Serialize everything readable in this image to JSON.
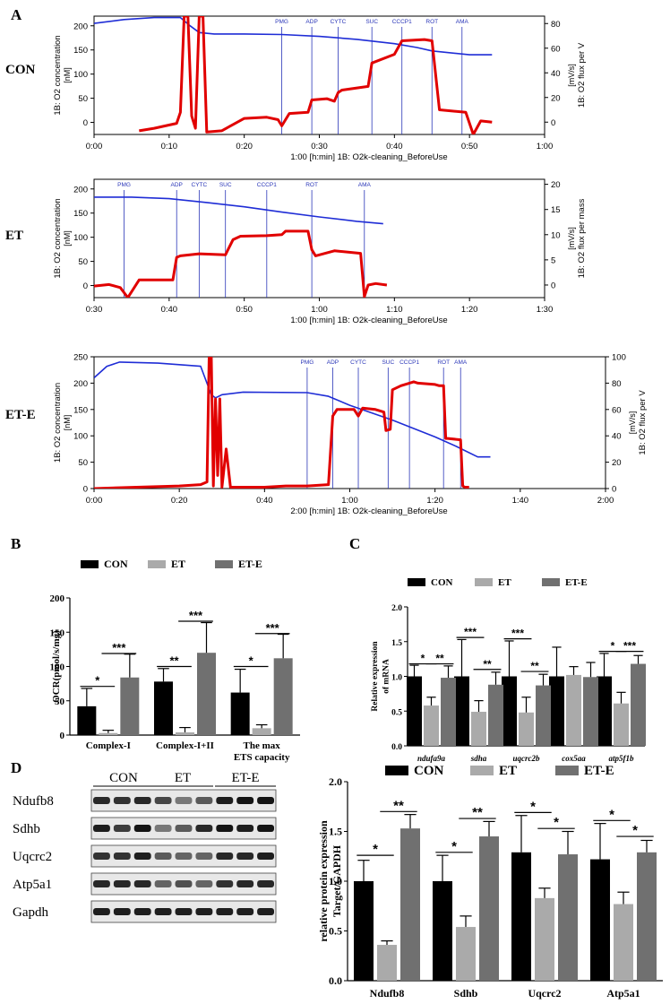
{
  "figure": {
    "panel_labels": [
      "A",
      "B",
      "C",
      "D"
    ],
    "row_labels": [
      "CON",
      "ET",
      "ET-E"
    ],
    "colors": {
      "o2_conc": "#1f2dd6",
      "o2_flux": "#e10000",
      "event": "#2a36b8",
      "con": "#000000",
      "et": "#aaaaaa",
      "ete": "#707070"
    }
  },
  "chart_data": [
    {
      "id": "A-CON",
      "type": "line",
      "title": "",
      "xlabel": "1:00 [h:min] 1B: O2k-cleaning_BeforeUse",
      "ylabel_left_1": "1B: O2 concentration",
      "ylabel_left_2": "[nM]",
      "ylabel_right_1": "1B: O2 flux per V",
      "ylabel_right_2": "[mV/s]",
      "xlim": [
        0,
        60
      ],
      "x_ticks": [
        "0:00",
        "0:10",
        "0:20",
        "0:30",
        "0:40",
        "0:50",
        "1:00"
      ],
      "x_tick_values": [
        0,
        10,
        20,
        30,
        40,
        50,
        60
      ],
      "ylim_left": [
        -25,
        220
      ],
      "y_ticks_left": [
        "0",
        "50",
        "100",
        "150",
        "200"
      ],
      "y_tick_values_left": [
        0,
        50,
        100,
        150,
        200
      ],
      "ylim_right": [
        -10,
        86
      ],
      "y_ticks_right": [
        "0",
        "20",
        "40",
        "60",
        "80"
      ],
      "y_tick_values_right": [
        0,
        20,
        40,
        60,
        80
      ],
      "events": [
        {
          "label": "PMG",
          "x": 25
        },
        {
          "label": "ADP",
          "x": 29
        },
        {
          "label": "CYTC",
          "x": 32.5
        },
        {
          "label": "SUC",
          "x": 37
        },
        {
          "label": "CCCP1",
          "x": 41
        },
        {
          "label": "ROT",
          "x": 45
        },
        {
          "label": "AMA",
          "x": 49
        }
      ],
      "series": [
        {
          "axis": "left",
          "color": "#1f2dd6",
          "x": [
            0,
            4,
            8,
            11.5,
            12.8,
            14,
            16,
            20,
            25,
            30,
            35,
            40,
            43,
            45,
            50,
            53
          ],
          "values": [
            205,
            213,
            217,
            217,
            200,
            186,
            183,
            183,
            182,
            178,
            172,
            163,
            155,
            148,
            140,
            140
          ]
        },
        {
          "axis": "right",
          "color": "#e10000",
          "x": [
            6,
            8,
            9.5,
            11,
            11.5,
            12,
            12.5,
            13,
            13.5,
            14,
            14.5,
            15,
            17,
            20,
            23,
            24.5,
            25,
            26,
            28.5,
            29,
            31,
            32,
            32.5,
            33,
            36.5,
            37,
            40,
            41,
            44,
            45,
            46,
            49.5,
            50.5,
            51.5,
            53
          ],
          "values": [
            -7,
            -5,
            -3,
            -1,
            8,
            86,
            86,
            5,
            -5,
            86,
            86,
            -8,
            -7,
            3,
            4,
            2,
            -3,
            7,
            8,
            18,
            19,
            17,
            24,
            26,
            29,
            48,
            55,
            66,
            67,
            66,
            10,
            8,
            -10,
            1,
            0
          ]
        }
      ]
    },
    {
      "id": "A-ET",
      "type": "line",
      "title": "",
      "xlabel": "1:00 [h:min] 1B: O2k-cleaning_BeforeUse",
      "ylabel_left_1": "1B: O2 concentration",
      "ylabel_left_2": "[nM]",
      "ylabel_right_1": "1B: O2 flux per mass",
      "ylabel_right_2": "[mV/s]",
      "xlim": [
        30,
        90
      ],
      "x_ticks": [
        "0:30",
        "0:40",
        "0:50",
        "1:00",
        "1:10",
        "1:20",
        "1:30"
      ],
      "x_tick_values": [
        30,
        40,
        50,
        60,
        70,
        80,
        90
      ],
      "ylim_left": [
        -25,
        220
      ],
      "y_ticks_left": [
        "0",
        "50",
        "100",
        "150",
        "200"
      ],
      "y_tick_values_left": [
        0,
        50,
        100,
        150,
        200
      ],
      "ylim_right": [
        -2.5,
        21
      ],
      "y_ticks_right": [
        "0",
        "5",
        "10",
        "15",
        "20"
      ],
      "y_tick_values_right": [
        0,
        5,
        10,
        15,
        20
      ],
      "events": [
        {
          "label": "PMG",
          "x": 34
        },
        {
          "label": "ADP",
          "x": 41
        },
        {
          "label": "CYTC",
          "x": 44
        },
        {
          "label": "SUC",
          "x": 47.5
        },
        {
          "label": "CCCP1",
          "x": 53
        },
        {
          "label": "ROT",
          "x": 59
        },
        {
          "label": "AMA",
          "x": 66
        }
      ],
      "series": [
        {
          "axis": "left",
          "color": "#1f2dd6",
          "x": [
            30,
            35,
            40,
            45,
            50,
            55,
            60,
            65,
            68.5
          ],
          "values": [
            183,
            183,
            180,
            172,
            163,
            152,
            142,
            133,
            128
          ]
        },
        {
          "axis": "right",
          "color": "#e10000",
          "x": [
            30,
            32,
            33.5,
            34.5,
            36,
            37.5,
            40,
            40.5,
            41,
            41.5,
            44,
            47.5,
            48.5,
            49.5,
            53,
            55,
            55.5,
            58.5,
            59,
            59.5,
            62,
            65.5,
            66,
            66.5,
            67.5,
            69
          ],
          "values": [
            -0.2,
            0.1,
            -0.5,
            -2.5,
            1,
            1,
            1,
            1,
            5.5,
            5.8,
            6.2,
            6,
            9,
            9.7,
            9.8,
            10,
            10.7,
            10.7,
            7,
            5.8,
            6.8,
            6.3,
            -2.3,
            0,
            0.3,
            0
          ]
        }
      ]
    },
    {
      "id": "A-ET-E",
      "type": "line",
      "title": "",
      "xlabel": "2:00 [h:min] 1B: O2k-cleaning_BeforeUse",
      "ylabel_left_1": "1B: O2 concentration",
      "ylabel_left_2": "[nM]",
      "ylabel_right_1": "1B: O2 flux per V",
      "ylabel_right_2": "[mV/s]",
      "xlim": [
        0,
        120
      ],
      "x_ticks": [
        "0:00",
        "0:20",
        "0:40",
        "1:00",
        "1:20",
        "1:40",
        "2:00"
      ],
      "x_tick_values": [
        0,
        20,
        40,
        60,
        80,
        100,
        120
      ],
      "ylim_left": [
        0,
        250
      ],
      "y_ticks_left": [
        "0",
        "50",
        "100",
        "150",
        "200",
        "250"
      ],
      "y_tick_values_left": [
        0,
        50,
        100,
        150,
        200,
        250
      ],
      "ylim_right": [
        0,
        100
      ],
      "y_ticks_right": [
        "0",
        "20",
        "40",
        "60",
        "80",
        "100"
      ],
      "y_tick_values_right": [
        0,
        20,
        40,
        60,
        80,
        100
      ],
      "events": [
        {
          "label": "PMG",
          "x": 50
        },
        {
          "label": "ADP",
          "x": 56
        },
        {
          "label": "CYTC",
          "x": 62
        },
        {
          "label": "SUC",
          "x": 69
        },
        {
          "label": "CCCP1",
          "x": 74
        },
        {
          "label": "ROT",
          "x": 82
        },
        {
          "label": "AMA",
          "x": 86
        }
      ],
      "series": [
        {
          "axis": "left",
          "color": "#1f2dd6",
          "x": [
            0,
            3,
            6,
            15,
            25,
            27.5,
            28.5,
            30,
            35,
            50,
            55,
            60,
            70,
            80,
            85,
            90,
            93
          ],
          "values": [
            210,
            232,
            240,
            238,
            232,
            178,
            172,
            178,
            183,
            182,
            175,
            158,
            130,
            98,
            80,
            60,
            60
          ]
        },
        {
          "axis": "right",
          "color": "#e10000",
          "x": [
            0,
            10,
            20,
            25,
            26.5,
            27,
            27.5,
            28,
            28.5,
            29,
            29.5,
            30,
            31,
            32,
            33,
            34,
            35,
            40,
            45,
            50,
            55,
            56,
            57,
            58,
            61,
            62,
            63,
            66,
            68,
            68.5,
            69.5,
            70,
            72,
            74,
            75,
            76,
            80,
            81,
            82,
            82.5,
            83,
            86,
            86.5,
            87,
            88
          ],
          "values": [
            0,
            1,
            2,
            3,
            5,
            100,
            100,
            2,
            68,
            10,
            68,
            1,
            30,
            1,
            1,
            1,
            1,
            1,
            2,
            2,
            3,
            55,
            60,
            60,
            60,
            55,
            61,
            60,
            58,
            44,
            45,
            75,
            78,
            80,
            81,
            80,
            79,
            78,
            78,
            38,
            38,
            37,
            2,
            1,
            1
          ]
        }
      ]
    },
    {
      "id": "B",
      "type": "bar",
      "title": "",
      "xlabel": "",
      "ylabel": "OCR(pmol/s/mg)",
      "ylim": [
        0,
        200
      ],
      "y_ticks": [
        "0",
        "50",
        "100",
        "150",
        "200"
      ],
      "y_tick_values": [
        0,
        50,
        100,
        150,
        200
      ],
      "categories": [
        "Complex-I",
        "Complex-I+II",
        "The max ETS capacity"
      ],
      "category_lines": [
        [
          "Complex-I"
        ],
        [
          "Complex-I+II"
        ],
        [
          "The max",
          "ETS capacity"
        ]
      ],
      "legend": [
        "CON",
        "ET",
        "ET-E"
      ],
      "legend_position": "top",
      "series": [
        {
          "name": "CON",
          "color": "#000000",
          "values": [
            42,
            78,
            62
          ],
          "errors": [
            26,
            19,
            34
          ]
        },
        {
          "name": "ET",
          "color": "#aaaaaa",
          "values": [
            3,
            4,
            10
          ],
          "errors": [
            4,
            7,
            5
          ]
        },
        {
          "name": "ET-E",
          "color": "#707070",
          "values": [
            84,
            120,
            112
          ],
          "errors": [
            34,
            44,
            35
          ]
        }
      ],
      "significance": [
        {
          "category": 0,
          "pair": [
            0,
            1
          ],
          "label": "*",
          "y": 71
        },
        {
          "category": 0,
          "pair": [
            1,
            2
          ],
          "label": "***",
          "y": 119
        },
        {
          "category": 1,
          "pair": [
            0,
            1
          ],
          "label": "**",
          "y": 100
        },
        {
          "category": 1,
          "pair": [
            1,
            2
          ],
          "label": "***",
          "y": 166
        },
        {
          "category": 2,
          "pair": [
            0,
            1
          ],
          "label": "*",
          "y": 100
        },
        {
          "category": 2,
          "pair": [
            1,
            2
          ],
          "label": "***",
          "y": 148
        }
      ]
    },
    {
      "id": "C",
      "type": "bar",
      "title": "",
      "xlabel": "",
      "ylabel_1": "Relative expression",
      "ylabel_2": "of mRNA",
      "ylim": [
        0,
        2.0
      ],
      "y_ticks": [
        "0.0",
        "0.5",
        "1.0",
        "1.5",
        "2.0"
      ],
      "y_tick_values": [
        0,
        0.5,
        1.0,
        1.5,
        2.0
      ],
      "categories": [
        "ndufa9a",
        "sdha",
        "uqcrc2b",
        "cox5aa",
        "atp5f1b"
      ],
      "legend": [
        "CON",
        "ET",
        "ET-E"
      ],
      "legend_position": "top",
      "series": [
        {
          "name": "CON",
          "color": "#000000",
          "values": [
            1.0,
            1.0,
            1.0,
            1.0,
            1.0
          ],
          "errors": [
            0.16,
            0.53,
            0.51,
            0.42,
            0.33
          ]
        },
        {
          "name": "ET",
          "color": "#aaaaaa",
          "values": [
            0.58,
            0.49,
            0.48,
            1.02,
            0.61
          ],
          "errors": [
            0.12,
            0.16,
            0.22,
            0.12,
            0.16
          ]
        },
        {
          "name": "ET-E",
          "color": "#707070",
          "values": [
            0.98,
            0.88,
            0.87,
            0.99,
            1.18
          ],
          "errors": [
            0.17,
            0.18,
            0.16,
            0.21,
            0.12
          ]
        }
      ],
      "significance": [
        {
          "category": 0,
          "pair": [
            0,
            1
          ],
          "label": "*",
          "y": 1.18
        },
        {
          "category": 0,
          "pair": [
            1,
            2
          ],
          "label": "**",
          "y": 1.18
        },
        {
          "category": 1,
          "pair": [
            0,
            1
          ],
          "label": "***",
          "y": 1.56
        },
        {
          "category": 1,
          "pair": [
            1,
            2
          ],
          "label": "**",
          "y": 1.1
        },
        {
          "category": 2,
          "pair": [
            0,
            1
          ],
          "label": "***",
          "y": 1.54
        },
        {
          "category": 2,
          "pair": [
            1,
            2
          ],
          "label": "**",
          "y": 1.07
        },
        {
          "category": 4,
          "pair": [
            0,
            1
          ],
          "label": "*",
          "y": 1.36
        },
        {
          "category": 4,
          "pair": [
            1,
            2
          ],
          "label": "***",
          "y": 1.36
        }
      ]
    },
    {
      "id": "D",
      "type": "bar",
      "title": "",
      "xlabel": "",
      "ylabel_1": "relative  protein expression",
      "ylabel_2": "Target/GAPDH",
      "ylim": [
        0,
        2.0
      ],
      "y_ticks": [
        "0.0",
        "0.5",
        "1.0",
        "1.5",
        "2.0"
      ],
      "y_tick_values": [
        0,
        0.5,
        1.0,
        1.5,
        2.0
      ],
      "categories": [
        "Ndufb8",
        "Sdhb",
        "Uqcrc2",
        "Atp5a1"
      ],
      "legend": [
        "CON",
        "ET",
        "ET-E"
      ],
      "legend_position": "top",
      "series": [
        {
          "name": "CON",
          "color": "#000000",
          "values": [
            1.0,
            1.0,
            1.29,
            1.22
          ],
          "errors": [
            0.21,
            0.26,
            0.37,
            0.36
          ]
        },
        {
          "name": "ET",
          "color": "#aaaaaa",
          "values": [
            0.36,
            0.54,
            0.83,
            0.77
          ],
          "errors": [
            0.04,
            0.11,
            0.1,
            0.12
          ]
        },
        {
          "name": "ET-E",
          "color": "#707070",
          "values": [
            1.53,
            1.45,
            1.27,
            1.29
          ],
          "errors": [
            0.14,
            0.15,
            0.23,
            0.12
          ]
        }
      ],
      "significance": [
        {
          "category": 0,
          "pair": [
            0,
            1
          ],
          "label": "*",
          "y": 1.26
        },
        {
          "category": 0,
          "pair": [
            1,
            2
          ],
          "label": "**",
          "y": 1.7
        },
        {
          "category": 1,
          "pair": [
            0,
            1
          ],
          "label": "*",
          "y": 1.29
        },
        {
          "category": 1,
          "pair": [
            1,
            2
          ],
          "label": "**",
          "y": 1.63
        },
        {
          "category": 2,
          "pair": [
            0,
            1
          ],
          "label": "*",
          "y": 1.69
        },
        {
          "category": 2,
          "pair": [
            1,
            2
          ],
          "label": "*",
          "y": 1.53
        },
        {
          "category": 3,
          "pair": [
            0,
            1
          ],
          "label": "*",
          "y": 1.61
        },
        {
          "category": 3,
          "pair": [
            1,
            2
          ],
          "label": "*",
          "y": 1.45
        }
      ]
    }
  ],
  "blot": {
    "groups": [
      "CON",
      "ET",
      "ET-E"
    ],
    "proteins": [
      "Ndufb8",
      "Sdhb",
      "Uqcrc2",
      "Atp5a1",
      "Gapdh"
    ],
    "intensities": [
      [
        0.85,
        0.8,
        0.85,
        0.7,
        0.45,
        0.6,
        0.9,
        0.95,
        0.95
      ],
      [
        0.9,
        0.75,
        0.95,
        0.45,
        0.6,
        0.85,
        0.95,
        0.9,
        0.95
      ],
      [
        0.8,
        0.8,
        0.9,
        0.6,
        0.55,
        0.55,
        0.85,
        0.85,
        0.9
      ],
      [
        0.85,
        0.85,
        0.85,
        0.55,
        0.65,
        0.55,
        0.8,
        0.85,
        0.85
      ],
      [
        0.9,
        0.9,
        0.9,
        0.9,
        0.9,
        0.9,
        0.9,
        0.9,
        0.9
      ]
    ]
  }
}
